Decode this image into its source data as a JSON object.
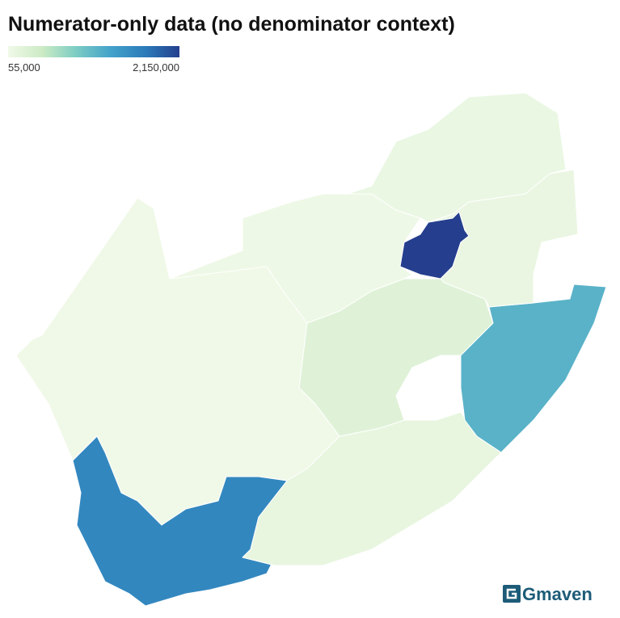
{
  "title": "Numerator-only data (no denominator context)",
  "legend": {
    "min": {
      "value": 55000,
      "label": "55,000"
    },
    "max": {
      "value": 2150000,
      "label": "2,150,000"
    },
    "colors": [
      "#f0f9e8",
      "#ccebc5",
      "#7bccc4",
      "#43a2ca",
      "#2b7bba",
      "#253f8e"
    ]
  },
  "regions": [
    {
      "value": 55000
    },
    {
      "value": 1600000
    },
    {
      "value": 150000
    },
    {
      "value": 250000
    },
    {
      "value": 1150000
    },
    {
      "value": 80000
    },
    {
      "value": 2150000
    },
    {
      "value": 120000
    },
    {
      "value": 130000
    }
  ],
  "logo": "Gmaven"
}
